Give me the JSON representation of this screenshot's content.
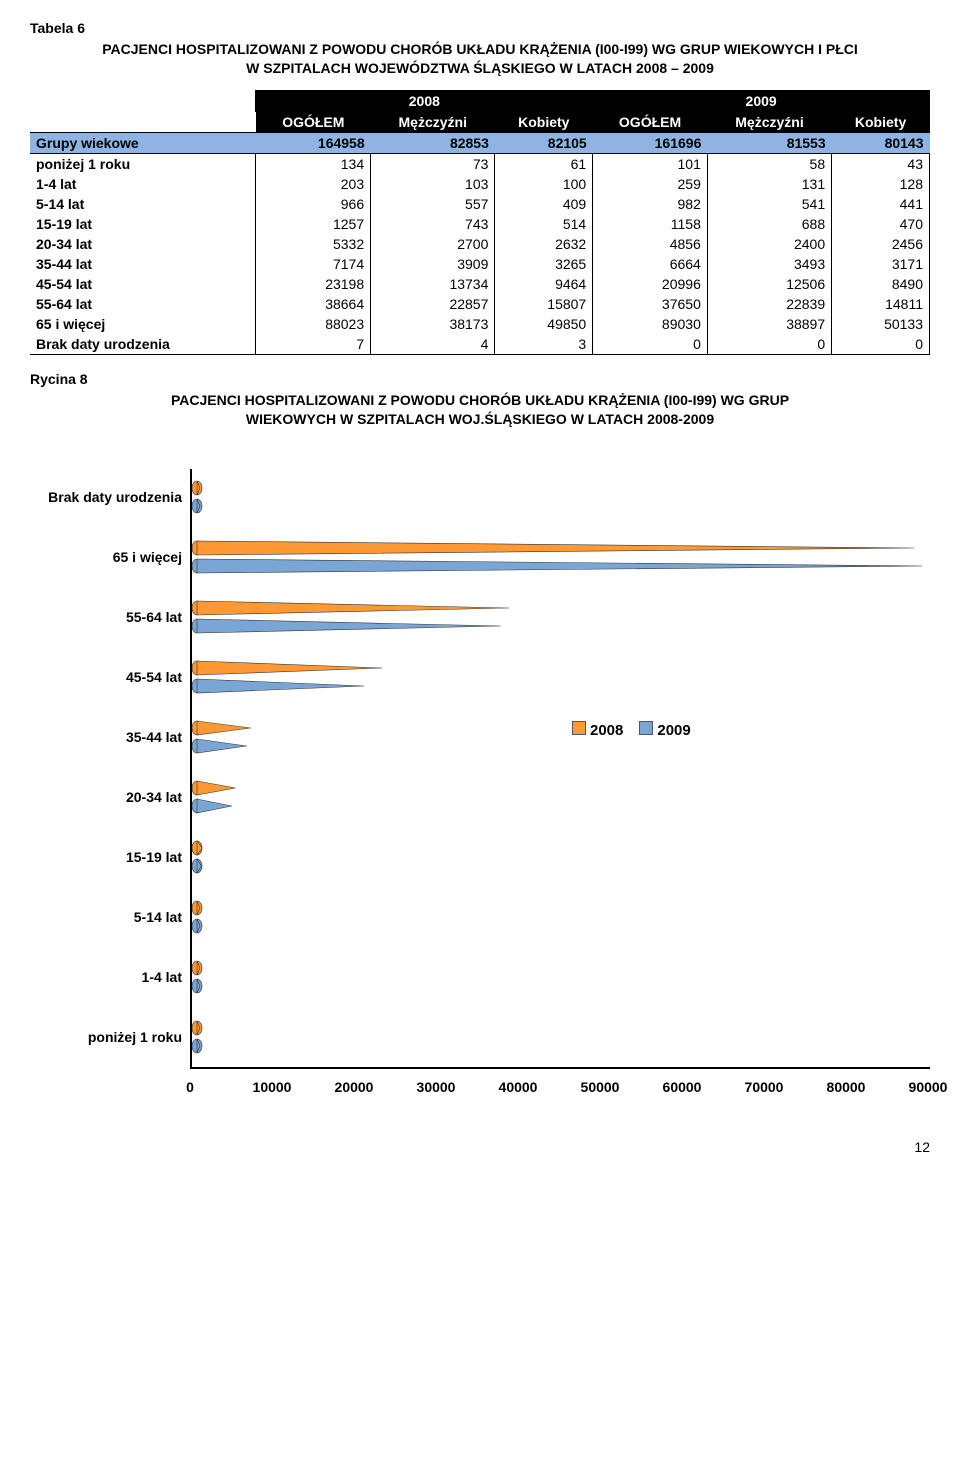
{
  "tabela_label": "Tabela 6",
  "title": "PACJENCI HOSPITALIZOWANI Z POWODU CHORÓB UKŁADU KRĄŻENIA (I00-I99) WG GRUP WIEKOWYCH I PŁCI W SZPITALACH WOJEWÓDZTWA ŚLĄSKIEGO W LATACH 2008 – 2009",
  "years": [
    "2008",
    "2009"
  ],
  "subheaders": [
    "OGÓŁEM",
    "Mężczyźni",
    "Kobiety",
    "OGÓŁEM",
    "Mężczyźni",
    "Kobiety"
  ],
  "totals_label": "Grupy wiekowe",
  "totals": [
    "164958",
    "82853",
    "82105",
    "161696",
    "81553",
    "80143"
  ],
  "rows": [
    {
      "label": "poniżej 1 roku",
      "v": [
        "134",
        "73",
        "61",
        "101",
        "58",
        "43"
      ]
    },
    {
      "label": "1-4 lat",
      "v": [
        "203",
        "103",
        "100",
        "259",
        "131",
        "128"
      ]
    },
    {
      "label": "5-14 lat",
      "v": [
        "966",
        "557",
        "409",
        "982",
        "541",
        "441"
      ]
    },
    {
      "label": "15-19 lat",
      "v": [
        "1257",
        "743",
        "514",
        "1158",
        "688",
        "470"
      ]
    },
    {
      "label": "20-34 lat",
      "v": [
        "5332",
        "2700",
        "2632",
        "4856",
        "2400",
        "2456"
      ]
    },
    {
      "label": "35-44 lat",
      "v": [
        "7174",
        "3909",
        "3265",
        "6664",
        "3493",
        "3171"
      ]
    },
    {
      "label": "45-54 lat",
      "v": [
        "23198",
        "13734",
        "9464",
        "20996",
        "12506",
        "8490"
      ]
    },
    {
      "label": "55-64 lat",
      "v": [
        "38664",
        "22857",
        "15807",
        "37650",
        "22839",
        "14811"
      ]
    },
    {
      "label": "65 i więcej",
      "v": [
        "88023",
        "38173",
        "49850",
        "89030",
        "38897",
        "50133"
      ]
    },
    {
      "label": "Brak daty urodzenia",
      "v": [
        "7",
        "4",
        "3",
        "0",
        "0",
        "0"
      ]
    }
  ],
  "rycina_label": "Rycina 8",
  "chart_title": "PACJENCI HOSPITALIZOWANI Z POWODU CHORÓB UKŁADU KRĄŻENIA (I00-I99) WG GRUP WIEKOWYCH W SZPITALACH WOJ.ŚLĄSKIEGO W LATACH 2008-2009",
  "chart": {
    "type": "horizontal-cone-bar",
    "xmax": 90000,
    "xticks": [
      0,
      10000,
      20000,
      30000,
      40000,
      50000,
      60000,
      70000,
      80000,
      90000
    ],
    "colors": {
      "2008": "#ff9933",
      "2009": "#7aa6d6",
      "stroke": "#333333"
    },
    "categories": [
      {
        "label": "Brak daty urodzenia",
        "v2008": 7,
        "v2009": 0
      },
      {
        "label": "65 i więcej",
        "v2008": 88023,
        "v2009": 89030
      },
      {
        "label": "55-64 lat",
        "v2008": 38664,
        "v2009": 37650
      },
      {
        "label": "45-54 lat",
        "v2008": 23198,
        "v2009": 20996
      },
      {
        "label": "35-44 lat",
        "v2008": 7174,
        "v2009": 6664
      },
      {
        "label": "20-34 lat",
        "v2008": 5332,
        "v2009": 4856
      },
      {
        "label": "15-19 lat",
        "v2008": 1257,
        "v2009": 1158
      },
      {
        "label": "5-14 lat",
        "v2008": 966,
        "v2009": 982
      },
      {
        "label": "1-4 lat",
        "v2008": 203,
        "v2009": 259
      },
      {
        "label": "poniżej 1 roku",
        "v2008": 134,
        "v2009": 101
      }
    ],
    "legend_labels": [
      "2008",
      "2009"
    ],
    "legend_row_index": 4
  },
  "page_number": "12"
}
